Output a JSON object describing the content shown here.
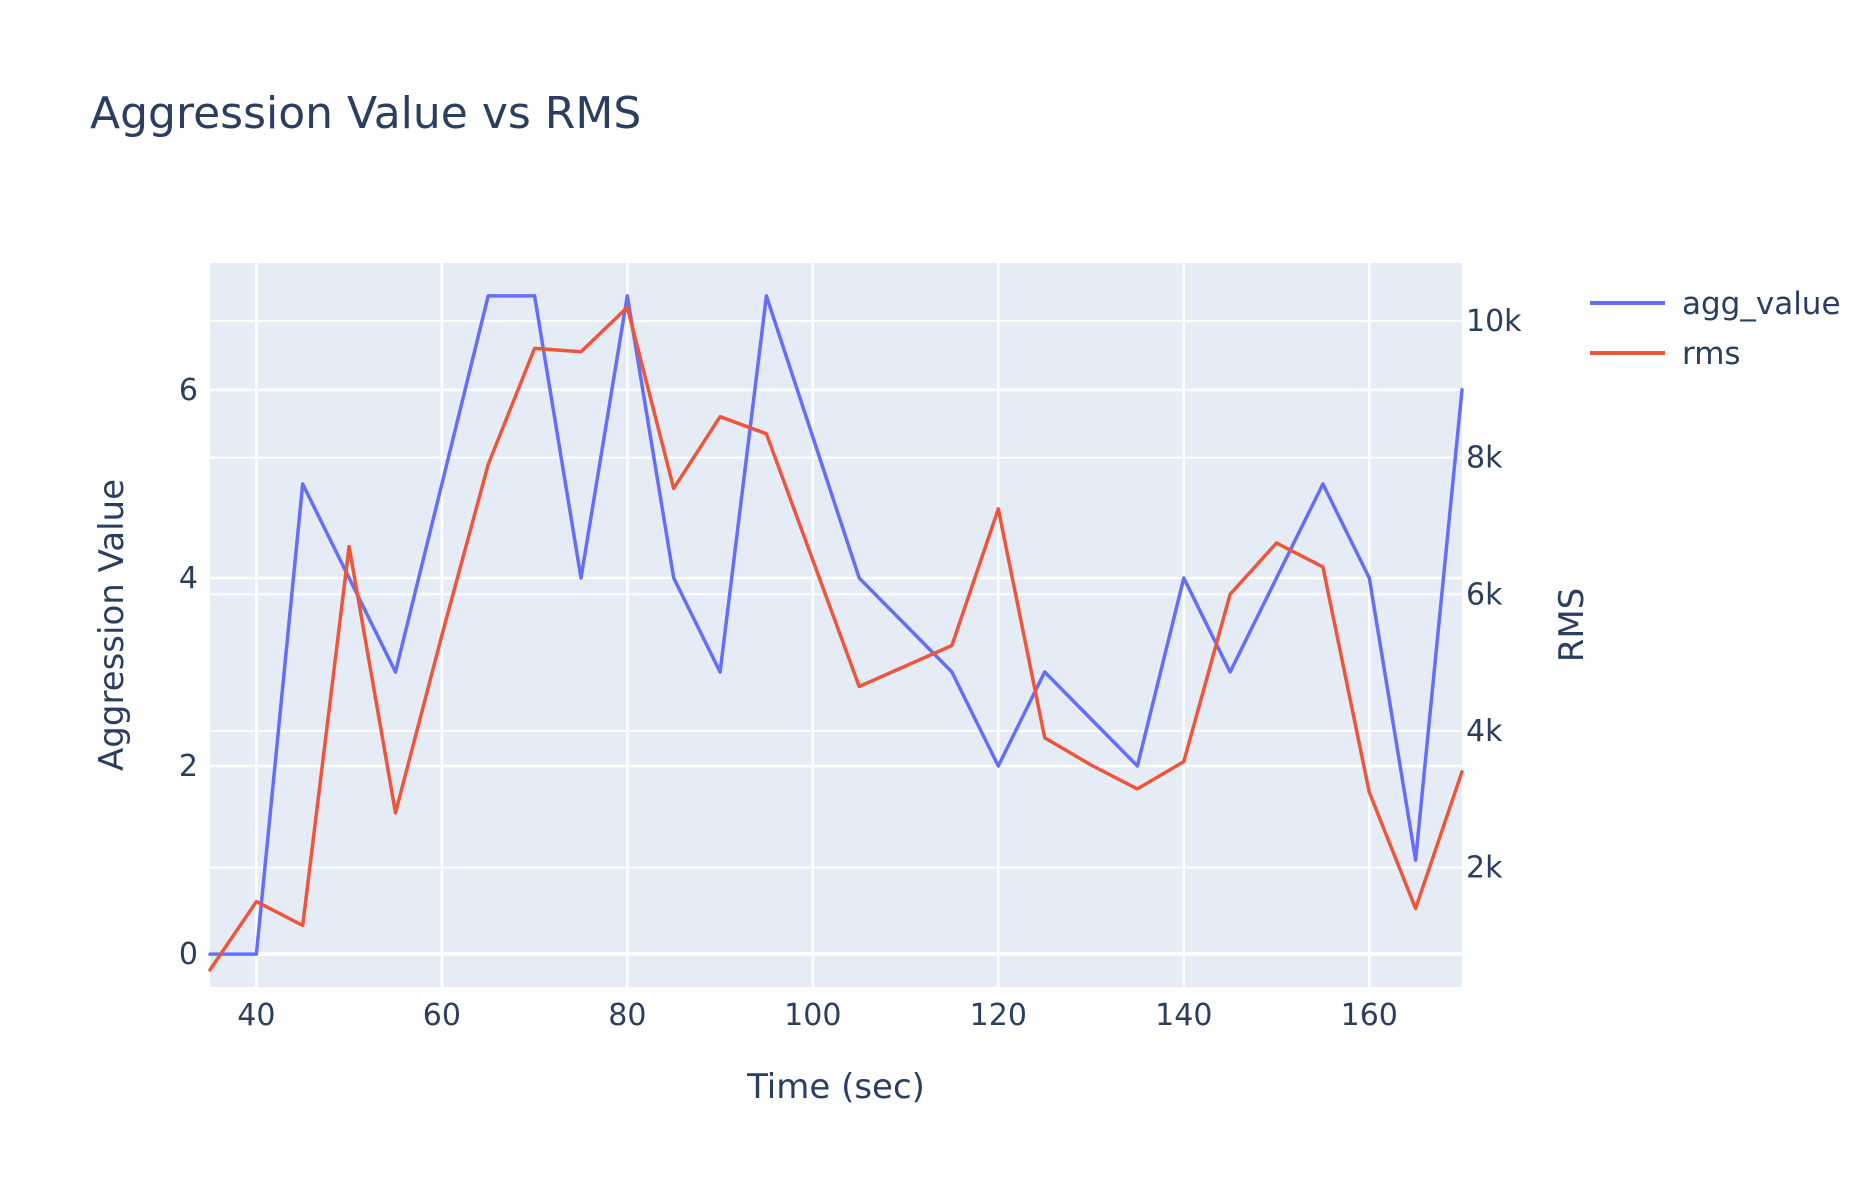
{
  "chart_data": {
    "type": "line",
    "title": "Aggression Value vs RMS",
    "xlabel": "Time (sec)",
    "ylabel": "Aggression Value",
    "y2label": "RMS",
    "xlim": [
      35,
      170
    ],
    "ylim": [
      -0.35,
      7.35
    ],
    "y2lim": [
      250,
      10850
    ],
    "xticks": [
      40,
      60,
      80,
      100,
      120,
      140,
      160
    ],
    "yticks": [
      0,
      2,
      4,
      6
    ],
    "y2ticks": [
      2000,
      4000,
      6000,
      8000,
      10000
    ],
    "y2ticklabels": [
      "2k",
      "4k",
      "6k",
      "8k",
      "10k"
    ],
    "grid": true,
    "legend_position": "top-right",
    "x": [
      35,
      40,
      45,
      50,
      55,
      60,
      65,
      70,
      75,
      80,
      85,
      90,
      95,
      100,
      105,
      110,
      115,
      120,
      125,
      130,
      135,
      140,
      145,
      150,
      155,
      160,
      165,
      170
    ],
    "series": [
      {
        "name": "agg_value",
        "axis": "left",
        "color": "#636efa",
        "values": [
          0,
          0,
          5,
          4,
          3,
          5,
          7,
          7,
          4,
          7,
          4,
          3,
          7,
          5.5,
          4,
          3.5,
          3,
          2,
          3,
          2.5,
          2,
          4,
          3,
          4,
          5,
          4,
          1,
          6
        ]
      },
      {
        "name": "rms",
        "axis": "right",
        "color": "#ef553b",
        "values": [
          500,
          1500,
          1150,
          6700,
          2800,
          5400,
          7900,
          9600,
          9550,
          10200,
          7550,
          8600,
          8350,
          6500,
          4650,
          4950,
          5250,
          7250,
          3900,
          3500,
          3150,
          3550,
          6000,
          6750,
          6400,
          3100,
          1400,
          3400
        ]
      }
    ]
  }
}
